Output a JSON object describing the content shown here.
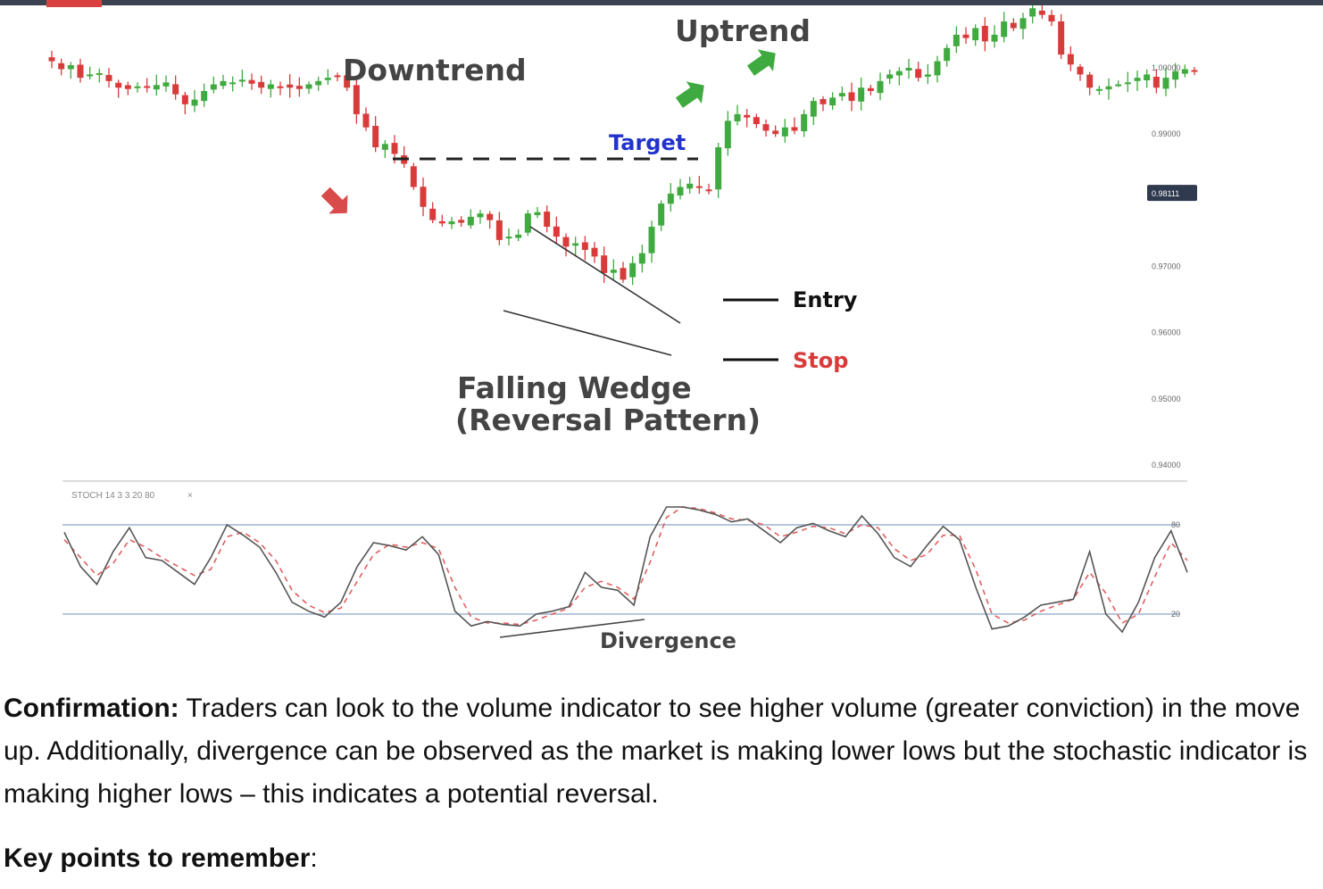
{
  "chart_data": {
    "type": "candlestick",
    "annotations": {
      "downtrend": "Downtrend",
      "uptrend": "Uptrend",
      "target": "Target",
      "entry": "Entry",
      "stop": "Stop",
      "pattern_line1": "Falling Wedge",
      "pattern_line2": "(Reversal Pattern)",
      "divergence": "Divergence"
    },
    "price_axis": {
      "ticks": [
        "1.00000",
        "0.99000",
        "0.97000",
        "0.96000",
        "0.95000",
        "0.94000"
      ],
      "current_price": "0.98111"
    },
    "candles_close": [
      1.001,
      0.9998,
      1.0004,
      0.9985,
      0.999,
      0.9992,
      0.998,
      0.997,
      0.9968,
      0.9972,
      0.997,
      0.9974,
      0.9978,
      0.996,
      0.9945,
      0.9952,
      0.9965,
      0.9975,
      0.998,
      0.9978,
      0.9982,
      0.9976,
      0.997,
      0.9975,
      0.9972,
      0.997,
      0.9968,
      0.9975,
      0.998,
      0.9985,
      0.9988,
      0.997,
      0.993,
      0.991,
      0.988,
      0.9885,
      0.987,
      0.9855,
      0.982,
      0.979,
      0.977,
      0.9765,
      0.9768,
      0.9766,
      0.9775,
      0.978,
      0.977,
      0.974,
      0.9745,
      0.9748,
      0.978,
      0.9782,
      0.976,
      0.9745,
      0.973,
      0.9735,
      0.9725,
      0.9715,
      0.969,
      0.9695,
      0.968,
      0.9705,
      0.972,
      0.976,
      0.9795,
      0.981,
      0.982,
      0.9825,
      0.982,
      0.9815,
      0.988,
      0.992,
      0.993,
      0.9925,
      0.9915,
      0.9905,
      0.99,
      0.991,
      0.9905,
      0.993,
      0.995,
      0.9945,
      0.9955,
      0.9962,
      0.995,
      0.997,
      0.9965,
      0.998,
      0.999,
      0.9995,
      1.0,
      0.9985,
      0.999,
      1.001,
      1.003,
      1.005,
      1.0045,
      1.006,
      1.004,
      1.005,
      1.007,
      1.006,
      1.0075,
      1.009,
      1.008,
      1.007,
      1.002,
      1.0005,
      0.999,
      0.997,
      0.9968,
      0.9972,
      0.9975,
      0.9978,
      0.9985,
      0.999,
      0.997,
      0.9985,
      0.9995,
      0.9998,
      0.9996
    ],
    "oscillator": {
      "label": "STOCH 14 3 3 20 80",
      "levels": [
        80,
        20
      ],
      "k": [
        75,
        52,
        40,
        62,
        78,
        58,
        56,
        48,
        40,
        58,
        80,
        73,
        65,
        48,
        28,
        22,
        18,
        28,
        52,
        68,
        66,
        63,
        72,
        60,
        22,
        12,
        15,
        13,
        12,
        20,
        22,
        25,
        48,
        38,
        36,
        26,
        72,
        92,
        92,
        90,
        87,
        82,
        84,
        76,
        68,
        78,
        81,
        76,
        72,
        86,
        74,
        58,
        52,
        66,
        79,
        70,
        38,
        10,
        12,
        18,
        26,
        28,
        30,
        62,
        20,
        8,
        28,
        58,
        76,
        48
      ],
      "d": [
        70,
        58,
        46,
        54,
        70,
        65,
        58,
        52,
        46,
        50,
        72,
        75,
        68,
        56,
        36,
        26,
        21,
        24,
        42,
        60,
        67,
        65,
        68,
        64,
        38,
        18,
        14,
        14,
        13,
        16,
        20,
        24,
        38,
        42,
        38,
        30,
        55,
        85,
        92,
        91,
        88,
        84,
        83,
        80,
        72,
        75,
        79,
        78,
        74,
        80,
        78,
        64,
        56,
        60,
        73,
        73,
        50,
        20,
        14,
        16,
        22,
        26,
        30,
        48,
        34,
        14,
        20,
        45,
        68,
        56
      ],
      "tick_80": "80",
      "tick_20": "20"
    }
  },
  "text": {
    "confirmation_label": "Confirmation:",
    "confirmation_body": " Traders can look to the volume indicator to see higher volume (greater conviction) in the move up. Additionally, divergence can be observed as the market is making lower lows but the stochastic indicator is making higher lows – this indicates a potential reversal.",
    "keypoints_label": "Key points to remember",
    "keypoints_colon": ":"
  },
  "colors": {
    "up": "#3faa3f",
    "down": "#d93b3b",
    "target_label": "#2233cc",
    "stop_label": "#d93b3b",
    "level_line": "#9fb4d0",
    "annotation_text": "#444444"
  }
}
